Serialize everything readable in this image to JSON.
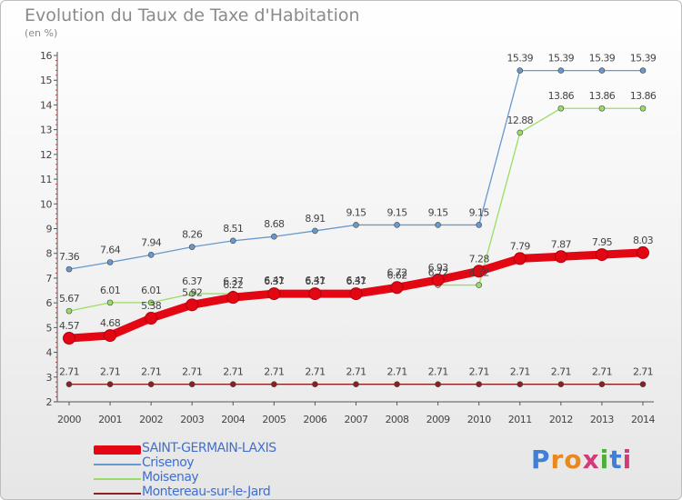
{
  "header": {
    "title": "Evolution du Taux de Taxe d'Habitation",
    "subtitle": "(en %)"
  },
  "brand": {
    "letters": [
      "P",
      "r",
      "o",
      "x",
      "i",
      "t",
      "i"
    ],
    "colors": [
      "#3f7fd8",
      "#e8891f",
      "#e8891f",
      "#d33a7a",
      "#4fae3a",
      "#3f7fd8",
      "#d33a7a"
    ]
  },
  "chart_data": {
    "type": "line",
    "title": "Evolution du Taux de Taxe d'Habitation",
    "ylabel": "(en %)",
    "xlabel": "",
    "ylim": [
      2,
      16
    ],
    "yticks": [
      2,
      3,
      4,
      5,
      6,
      7,
      8,
      9,
      10,
      11,
      12,
      13,
      14,
      15,
      16
    ],
    "categories": [
      "2000",
      "2001",
      "2002",
      "2003",
      "2004",
      "2005",
      "2006",
      "2007",
      "2008",
      "2009",
      "2010",
      "2011",
      "2012",
      "2013",
      "2014"
    ],
    "grid": false,
    "legend_position": "bottom-left",
    "series": [
      {
        "name": "SAINT-GERMAIN-LAXIS",
        "color": "#e30613",
        "style": "thick",
        "values": [
          4.57,
          4.68,
          5.38,
          5.92,
          6.22,
          6.37,
          6.37,
          6.37,
          6.62,
          6.93,
          7.28,
          7.79,
          7.87,
          7.95,
          8.03
        ],
        "labels": [
          "4.57",
          "4.68",
          "5.38",
          "5.92",
          "6.22",
          "6.37",
          "6.37",
          "6.37",
          "6.62",
          "6.93",
          "7.28",
          "7.79",
          "7.87",
          "7.95",
          "8.03"
        ]
      },
      {
        "name": "Crisenoy",
        "color": "#6699cc",
        "style": "thin",
        "values": [
          7.36,
          7.64,
          7.94,
          8.26,
          8.51,
          8.68,
          8.91,
          9.15,
          9.15,
          9.15,
          9.15,
          15.39,
          15.39,
          15.39,
          15.39
        ],
        "labels": [
          "7.36",
          "7.64",
          "7.94",
          "8.26",
          "8.51",
          "8.68",
          "8.91",
          "9.15",
          "9.15",
          "9.15",
          "9.15",
          "15.39",
          "15.39",
          "15.39",
          "15.39"
        ]
      },
      {
        "name": "Moisenay",
        "color": "#99dd66",
        "style": "thin",
        "values": [
          5.67,
          6.01,
          6.01,
          6.37,
          6.37,
          6.41,
          6.41,
          6.41,
          6.72,
          6.72,
          6.72,
          12.88,
          13.86,
          13.86,
          13.86
        ],
        "labels": [
          "5.67",
          "6.01",
          "6.01",
          "6.37",
          "6.37",
          "6.41",
          "6.41",
          "6.41",
          "6.72",
          "6.72",
          "6.72",
          "12.88",
          "13.86",
          "13.86",
          "13.86"
        ]
      },
      {
        "name": "Montereau-sur-le-Jard",
        "color": "#882222",
        "style": "thin",
        "values": [
          2.71,
          2.71,
          2.71,
          2.71,
          2.71,
          2.71,
          2.71,
          2.71,
          2.71,
          2.71,
          2.71,
          2.71,
          2.71,
          2.71,
          2.71
        ],
        "labels": [
          "2.71",
          "2.71",
          "2.71",
          "2.71",
          "2.71",
          "2.71",
          "2.71",
          "2.71",
          "2.71",
          "2.71",
          "2.71",
          "2.71",
          "2.71",
          "2.71",
          "2.71"
        ]
      }
    ]
  }
}
